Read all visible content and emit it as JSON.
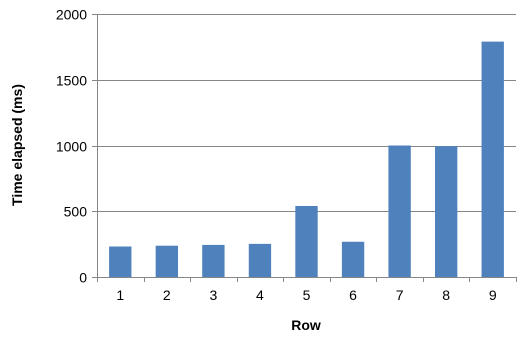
{
  "chart_data": {
    "type": "bar",
    "title": "",
    "xlabel": "Row",
    "ylabel": "Time elapsed (ms)",
    "categories": [
      "1",
      "2",
      "3",
      "4",
      "5",
      "6",
      "7",
      "8",
      "9"
    ],
    "values": [
      232,
      238,
      244,
      252,
      540,
      268,
      1000,
      995,
      1790
    ],
    "ylim": [
      0,
      2000
    ],
    "yticks": [
      "0",
      "500",
      "1000",
      "1500",
      "2000"
    ],
    "ytick_values": [
      0,
      500,
      1000,
      1500,
      2000
    ],
    "grid": true,
    "legend": "none",
    "colors": {
      "bar": "#4F81BD",
      "grid": "#868686",
      "axis": "#868686"
    }
  }
}
